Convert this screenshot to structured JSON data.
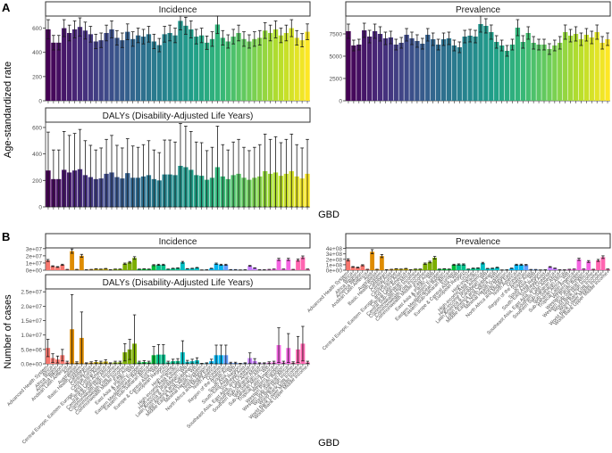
{
  "figure": {
    "panel_labels": [
      "A",
      "B"
    ],
    "colors": {
      "viridis": [
        "#440154",
        "#482878",
        "#3e4989",
        "#31688e",
        "#26828e",
        "#1f9e89",
        "#35b779",
        "#6ece58",
        "#b5de2b",
        "#fde725"
      ],
      "region_palette": [
        "#f8766d",
        "#de8c00",
        "#b79f00",
        "#7cae00",
        "#00ba38",
        "#00c08b",
        "#00bfc4",
        "#00b4f0",
        "#619cff",
        "#c77cff",
        "#f564e3",
        "#ff64b0"
      ],
      "strip_fill": "#ffffff",
      "error_bar": "#1a1a1a",
      "axis_text": "#4d4d4d"
    }
  },
  "chart_data": [
    {
      "type": "bar",
      "panel": "A",
      "title": "Incidence",
      "xlabel": "GBD",
      "ylabel": "Age-standardized rate",
      "ylim": [
        0,
        700
      ],
      "yticks": [
        0,
        200,
        400,
        600
      ],
      "ytick_labels": [
        "0",
        "200",
        "400",
        "600"
      ],
      "categories": 50,
      "values": [
        590,
        480,
        480,
        600,
        560,
        590,
        610,
        580,
        550,
        490,
        500,
        560,
        590,
        520,
        500,
        570,
        510,
        540,
        530,
        550,
        490,
        460,
        550,
        560,
        540,
        660,
        620,
        590,
        530,
        540,
        480,
        510,
        630,
        520,
        490,
        530,
        560,
        510,
        490,
        510,
        520,
        580,
        560,
        590,
        540,
        560,
        600,
        520,
        500,
        570
      ],
      "errors": [
        80,
        60,
        60,
        70,
        65,
        70,
        75,
        70,
        65,
        60,
        60,
        65,
        70,
        60,
        60,
        65,
        60,
        60,
        60,
        65,
        60,
        55,
        65,
        65,
        60,
        75,
        70,
        70,
        60,
        60,
        55,
        60,
        75,
        60,
        55,
        60,
        65,
        60,
        55,
        60,
        60,
        65,
        65,
        70,
        60,
        65,
        70,
        60,
        55,
        65
      ]
    },
    {
      "type": "bar",
      "panel": "A",
      "title": "Prevalence",
      "ylim": [
        0,
        9500
      ],
      "yticks": [
        0,
        2500,
        5000,
        7500
      ],
      "ytick_labels": [
        "0",
        "2500",
        "5000",
        "7500"
      ],
      "categories": 50,
      "values": [
        7800,
        6200,
        6300,
        7900,
        7200,
        7800,
        7500,
        7000,
        7100,
        6300,
        6500,
        7400,
        7000,
        6700,
        6400,
        7400,
        6900,
        6300,
        6900,
        7000,
        6200,
        6000,
        7200,
        7300,
        7200,
        8600,
        8400,
        7700,
        6600,
        6200,
        5600,
        6300,
        8200,
        6600,
        7600,
        6500,
        6300,
        6300,
        5800,
        6200,
        6500,
        7700,
        7300,
        7500,
        6900,
        7400,
        7100,
        7700,
        6500,
        6900
      ],
      "errors": [
        800,
        600,
        600,
        800,
        700,
        800,
        800,
        700,
        700,
        600,
        600,
        700,
        700,
        700,
        600,
        700,
        700,
        600,
        700,
        700,
        600,
        600,
        700,
        700,
        700,
        900,
        800,
        800,
        700,
        600,
        600,
        600,
        900,
        700,
        700,
        700,
        600,
        600,
        600,
        600,
        700,
        800,
        700,
        800,
        700,
        700,
        700,
        800,
        700,
        700
      ]
    },
    {
      "type": "bar",
      "panel": "A",
      "title": "DALYs (Disability-Adjusted Life Years)",
      "ylim": [
        0,
        640
      ],
      "yticks": [
        0,
        200,
        400,
        600
      ],
      "ytick_labels": [
        "0",
        "200",
        "400",
        "600"
      ],
      "categories": 50,
      "values": [
        275,
        210,
        210,
        280,
        260,
        275,
        285,
        240,
        225,
        210,
        215,
        250,
        260,
        225,
        215,
        255,
        220,
        220,
        230,
        240,
        210,
        200,
        245,
        245,
        240,
        310,
        300,
        280,
        240,
        235,
        205,
        220,
        300,
        230,
        210,
        240,
        250,
        220,
        205,
        220,
        230,
        270,
        250,
        260,
        235,
        250,
        270,
        230,
        215,
        250
      ],
      "errors": [
        290,
        220,
        220,
        290,
        280,
        280,
        300,
        260,
        240,
        220,
        230,
        260,
        280,
        240,
        230,
        260,
        240,
        230,
        240,
        260,
        220,
        210,
        260,
        260,
        250,
        320,
        310,
        290,
        250,
        250,
        220,
        230,
        310,
        240,
        220,
        250,
        260,
        230,
        220,
        230,
        240,
        280,
        260,
        270,
        250,
        260,
        280,
        240,
        230,
        260
      ]
    },
    {
      "type": "bar",
      "panel": "B",
      "title": "Incidence",
      "xlabel": "GBD",
      "ylabel": "Number of cases",
      "ylim": [
        0,
        31000000
      ],
      "yticks": [
        0,
        10000000,
        20000000,
        30000000
      ],
      "ytick_labels": [
        "0e+00",
        "1e+07",
        "2e+07",
        "3e+07"
      ],
      "categories": [
        "Advanced Health System",
        "Africa",
        "Africa Region",
        "America Region",
        "Andean Latin America",
        "Asia",
        "Australasia",
        "Basic Health System",
        "Caribbean",
        "Central Asia",
        "Central Europe",
        "Central Europe, Eastern Europe, and Central Asia",
        "Central Latin America",
        "Central Sub-Saharan Africa",
        "Commonwealth High Income",
        "Commonwealth Low Income",
        "Commonwealth Middle Income",
        "East Asia",
        "East Asia & Pacific - WB",
        "Eastern Europe",
        "Eastern Mediterranean Region",
        "Eastern Sub-Saharan Africa",
        "Europe",
        "Europe & Central Asia - WB",
        "European Region",
        "G20",
        "High-income",
        "High-income Asia Pacific",
        "High-income North America",
        "Latin America & Caribbean - WB",
        "Latin America and Caribbean",
        "Middle East & North Africa - WB",
        "Minimal Health System",
        "Nordic Region",
        "North Africa and Middle East",
        "North America",
        "Oceania",
        "Region of the Americas",
        "South Asia",
        "South Asia - WB",
        "South-East Asia Region",
        "Southeast Asia",
        "Southeast Asia, East Asia, and Oceania",
        "Southern Latin America",
        "Southern Sub-Saharan Africa",
        "Sub-Saharan Africa",
        "Sub-Saharan Africa - WB",
        "Tropical Latin America",
        "Western Europe",
        "Western Pacific Region",
        "Western Sub-Saharan Africa",
        "World Bank High Income",
        "World Bank Low Income",
        "World Bank Lower Middle Income",
        "World Bank Upper Middle Income"
      ],
      "values": [
        13500000,
        5500000,
        4500000,
        7500000,
        1000000,
        26500000,
        1000000,
        20000000,
        500000,
        1000000,
        1800000,
        1500000,
        2200000,
        600000,
        1500000,
        1500000,
        9000000,
        11000000,
        17000000,
        1500000,
        1800000,
        1500000,
        7000000,
        7500000,
        7500000,
        1500000,
        2500000,
        3000000,
        11000000,
        2000000,
        2500000,
        3500000,
        300000,
        500000,
        2500000,
        9000000,
        7500000,
        7500000,
        800000,
        800000,
        300000,
        500000,
        6000000,
        3000000,
        500000,
        500000,
        1000000,
        1500000,
        15000000,
        1500000,
        15000000,
        1000000,
        14000000,
        18000000,
        1500000
      ],
      "errors": [
        1400000,
        600000,
        500000,
        800000,
        120000,
        3000000,
        120000,
        2000000,
        60000,
        120000,
        200000,
        150000,
        220000,
        70000,
        150000,
        150000,
        900000,
        1100000,
        1800000,
        150000,
        200000,
        150000,
        700000,
        800000,
        800000,
        150000,
        250000,
        300000,
        1200000,
        200000,
        250000,
        350000,
        40000,
        60000,
        250000,
        900000,
        800000,
        800000,
        90000,
        90000,
        40000,
        60000,
        600000,
        300000,
        60000,
        60000,
        120000,
        150000,
        1500000,
        150000,
        1500000,
        120000,
        1400000,
        1800000,
        150000
      ]
    },
    {
      "type": "bar",
      "panel": "B",
      "title": "Prevalence",
      "ylim": [
        0,
        410000000
      ],
      "yticks": [
        0,
        100000000,
        200000000,
        300000000,
        400000000
      ],
      "ytick_labels": [
        "0e+00",
        "1e+08",
        "2e+08",
        "3e+08",
        "4e+08"
      ],
      "categories": 55,
      "values": [
        190000000,
        60000000,
        50000000,
        90000000,
        15000000,
        340000000,
        15000000,
        260000000,
        8000000,
        15000000,
        25000000,
        20000000,
        30000000,
        8000000,
        20000000,
        20000000,
        120000000,
        150000000,
        230000000,
        20000000,
        25000000,
        20000000,
        100000000,
        105000000,
        105000000,
        20000000,
        35000000,
        40000000,
        130000000,
        30000000,
        35000000,
        50000000,
        4000000,
        6000000,
        35000000,
        100000000,
        100000000,
        95000000,
        12000000,
        12000000,
        4000000,
        6000000,
        60000000,
        35000000,
        6000000,
        6000000,
        15000000,
        20000000,
        200000000,
        20000000,
        160000000,
        15000000,
        180000000,
        240000000,
        20000000
      ],
      "errors": [
        20000000,
        7000000,
        6000000,
        10000000,
        2000000,
        38000000,
        2000000,
        28000000,
        1000000,
        2000000,
        3000000,
        2000000,
        3000000,
        1000000,
        2000000,
        2000000,
        12000000,
        15000000,
        23000000,
        2000000,
        3000000,
        2000000,
        10000000,
        11000000,
        11000000,
        2000000,
        4000000,
        4000000,
        14000000,
        3000000,
        4000000,
        5000000,
        500000,
        700000,
        4000000,
        10000000,
        11000000,
        10000000,
        1500000,
        1500000,
        500000,
        700000,
        6000000,
        4000000,
        700000,
        700000,
        2000000,
        2000000,
        20000000,
        2000000,
        17000000,
        2000000,
        18000000,
        24000000,
        2000000
      ]
    },
    {
      "type": "bar",
      "panel": "B",
      "title": "DALYs (Disability-Adjusted Life Years)",
      "ylim": [
        0,
        26000000
      ],
      "yticks": [
        0,
        5000000,
        10000000,
        15000000,
        20000000,
        25000000
      ],
      "ytick_labels": [
        "0.0e+00",
        "5.0e+06",
        "1.0e+07",
        "1.5e+07",
        "2.0e+07",
        "2.5e+07"
      ],
      "categories": 55,
      "values": [
        5500000,
        2000000,
        1500000,
        3000000,
        500000,
        12000000,
        400000,
        9000000,
        200000,
        400000,
        600000,
        500000,
        800000,
        200000,
        500000,
        500000,
        4000000,
        5000000,
        7000000,
        500000,
        600000,
        500000,
        3000000,
        3200000,
        3200000,
        500000,
        900000,
        1000000,
        4000000,
        700000,
        900000,
        1200000,
        100000,
        200000,
        900000,
        3000000,
        3000000,
        3000000,
        300000,
        300000,
        100000,
        200000,
        2000000,
        1000000,
        200000,
        200000,
        400000,
        500000,
        6500000,
        500000,
        5500000,
        400000,
        5000000,
        7000000,
        500000
      ],
      "errors": [
        3000000,
        1500000,
        1200000,
        2000000,
        400000,
        12000000,
        300000,
        9000000,
        150000,
        300000,
        500000,
        400000,
        600000,
        150000,
        400000,
        400000,
        3000000,
        3500000,
        10000000,
        400000,
        500000,
        400000,
        3000000,
        3500000,
        3500000,
        400000,
        700000,
        800000,
        4000000,
        500000,
        700000,
        900000,
        80000,
        150000,
        700000,
        3500000,
        3500000,
        3500000,
        250000,
        250000,
        80000,
        150000,
        1800000,
        800000,
        150000,
        150000,
        300000,
        400000,
        6000000,
        400000,
        5000000,
        300000,
        4500000,
        6000000,
        400000
      ]
    }
  ]
}
